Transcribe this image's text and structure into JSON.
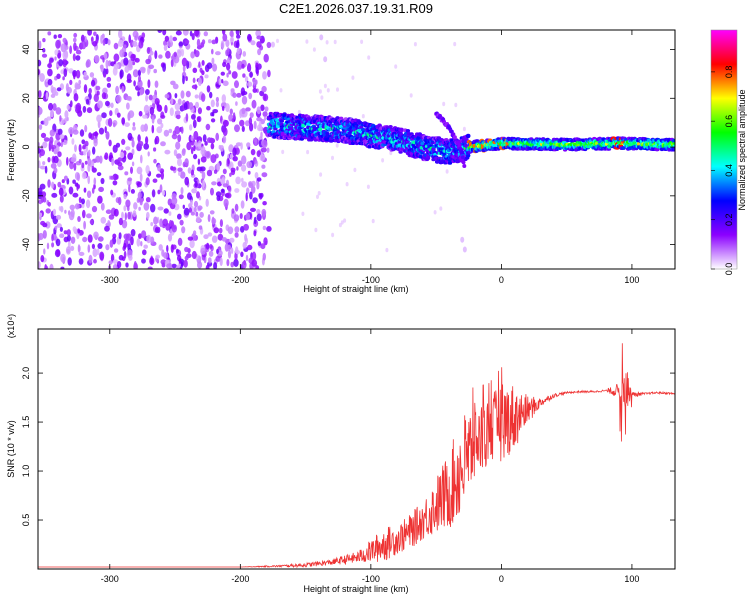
{
  "title": "C2E1.2026.037.19.31.R09",
  "chart_data": [
    {
      "type": "heatmap",
      "xlabel": "Height of straight line (km)",
      "ylabel": "Frequency (Hz)",
      "xlim": [
        -355,
        133
      ],
      "ylim": [
        -50,
        48
      ],
      "x_ticks": [
        -300,
        -200,
        -100,
        0,
        100
      ],
      "y_ticks": [
        -40,
        -20,
        0,
        20,
        40
      ],
      "colorbar": {
        "label": "Normalized spectral amplitude",
        "range": [
          0,
          0.97
        ],
        "ticks": [
          0.0,
          0.2,
          0.4,
          0.6,
          0.8
        ],
        "colormap": [
          "#ffffff",
          "#8b00ff",
          "#0000ff",
          "#00ffff",
          "#00ff00",
          "#ffff00",
          "#ff0000",
          "#ff00ff"
        ]
      },
      "features": [
        {
          "name": "noise",
          "x_range": [
            -355,
            -178
          ],
          "freq_range": [
            -50,
            48
          ],
          "amplitude": 0.1
        },
        {
          "name": "signal",
          "points": [
            {
              "x": -178,
              "freq": 9
            },
            {
              "x": -150,
              "freq": 8
            },
            {
              "x": -120,
              "freq": 7
            },
            {
              "x": -100,
              "freq": 5
            },
            {
              "x": -80,
              "freq": 3
            },
            {
              "x": -60,
              "freq": 0
            },
            {
              "x": -40,
              "freq": -2
            },
            {
              "x": -25,
              "freq": 0
            },
            {
              "x": 0,
              "freq": 1.5
            },
            {
              "x": 50,
              "freq": 1
            },
            {
              "x": 90,
              "freq": 1.5
            },
            {
              "x": 133,
              "freq": 1
            }
          ]
        },
        {
          "name": "branch",
          "points": [
            {
              "x": -50,
              "freq": 14
            },
            {
              "x": -40,
              "freq": 8
            },
            {
              "x": -30,
              "freq": -2
            },
            {
              "x": -28,
              "freq": -10
            }
          ]
        }
      ]
    },
    {
      "type": "line",
      "xlabel": "Height of straight line (km)",
      "ylabel": "SNR (10 * v/v)",
      "multiplier": "(x10⁴)",
      "xlim": [
        -355,
        133
      ],
      "ylim": [
        0,
        2.45
      ],
      "x_ticks": [
        -300,
        -200,
        -100,
        0,
        100
      ],
      "y_ticks": [
        0.5,
        1.0,
        1.5,
        2.0
      ],
      "series": [
        {
          "color": "#ee3333",
          "x": [
            -355,
            -200,
            -170,
            -150,
            -130,
            -110,
            -100,
            -90,
            -80,
            -70,
            -60,
            -50,
            -40,
            -30,
            -20,
            -10,
            0,
            10,
            20,
            30,
            40,
            50,
            60,
            70,
            80,
            90,
            95,
            100,
            110,
            120,
            133
          ],
          "values": [
            0.02,
            0.02,
            0.03,
            0.04,
            0.07,
            0.12,
            0.18,
            0.25,
            0.3,
            0.38,
            0.5,
            0.65,
            0.8,
            1.05,
            1.3,
            1.4,
            1.5,
            1.55,
            1.62,
            1.7,
            1.77,
            1.8,
            1.81,
            1.81,
            1.82,
            1.82,
            1.85,
            1.78,
            1.79,
            1.8,
            1.79
          ],
          "noise": [
            0,
            0,
            0.01,
            0.02,
            0.03,
            0.06,
            0.12,
            0.18,
            0.15,
            0.18,
            0.2,
            0.3,
            0.4,
            0.55,
            0.4,
            0.35,
            0.4,
            0.35,
            0.15,
            0.05,
            0.02,
            0.01,
            0.01,
            0.01,
            0.01,
            0.08,
            0.25,
            0.03,
            0.01,
            0.01,
            0.01
          ]
        }
      ]
    }
  ]
}
